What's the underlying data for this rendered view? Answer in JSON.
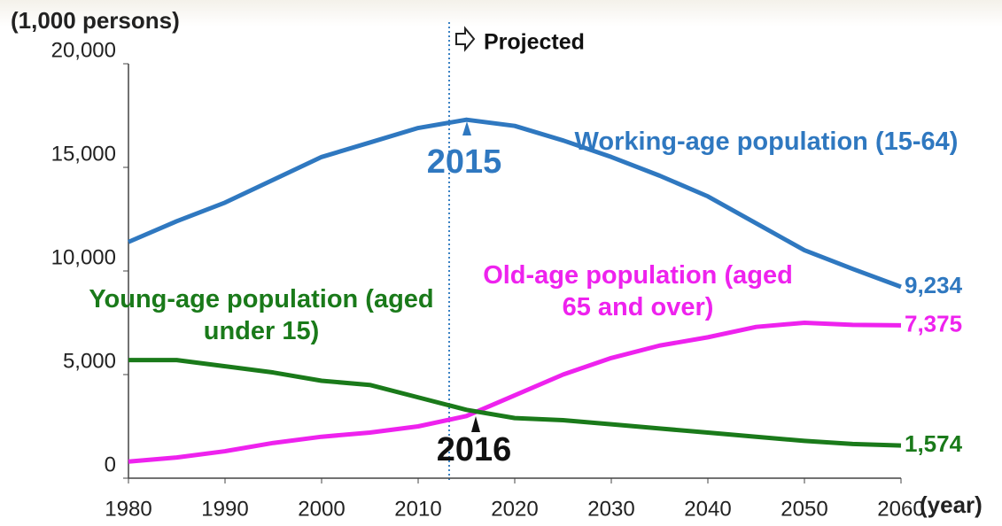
{
  "chart_data": {
    "type": "line",
    "y_label": "(1,000 persons)",
    "x_label": "(year)",
    "annotations": [
      "Projected",
      "2015",
      "2016"
    ],
    "x": [
      1980,
      1985,
      1990,
      1995,
      2000,
      2005,
      2010,
      2015,
      2020,
      2025,
      2030,
      2035,
      2040,
      2045,
      2050,
      2055,
      2060
    ],
    "series": [
      {
        "name": "Working-age population (15-64)",
        "color": "#2f78c0",
        "values": [
          11400,
          12400,
          13300,
          14400,
          15500,
          16200,
          16900,
          17300,
          17000,
          16300,
          15500,
          14600,
          13600,
          12300,
          11000,
          10100,
          9234
        ],
        "value_labels": [
          null,
          null,
          null,
          null,
          null,
          null,
          null,
          null,
          null,
          null,
          null,
          null,
          null,
          null,
          null,
          null,
          "9,234"
        ]
      },
      {
        "name": "Old-age population (aged 65 and over)",
        "color": "#ee22ee",
        "values": [
          800,
          1000,
          1300,
          1700,
          2000,
          2200,
          2500,
          3000,
          4000,
          5000,
          5800,
          6400,
          6800,
          7300,
          7500,
          7400,
          7375
        ],
        "value_labels": [
          null,
          null,
          null,
          null,
          null,
          null,
          null,
          null,
          null,
          null,
          null,
          null,
          null,
          null,
          null,
          null,
          "7,375"
        ]
      },
      {
        "name": "Young-age population (aged under 15)",
        "color": "#1a7a1a",
        "values": [
          5700,
          5700,
          5400,
          5100,
          4700,
          4500,
          3900,
          3300,
          2900,
          2800,
          2600,
          2400,
          2200,
          2000,
          1800,
          1650,
          1574
        ],
        "value_labels": [
          null,
          null,
          null,
          null,
          null,
          null,
          null,
          null,
          null,
          null,
          null,
          null,
          null,
          null,
          null,
          null,
          "1,574"
        ]
      }
    ],
    "xlim": [
      1980,
      2060
    ],
    "xticks": [
      1980,
      1990,
      2000,
      2010,
      2020,
      2030,
      2040,
      2050,
      2060
    ],
    "ylim": [
      0,
      20000
    ],
    "yticks": [
      0,
      {
        "value": 5000,
        "label": "5,000"
      },
      {
        "value": 10000,
        "label": "10,000"
      },
      {
        "value": 15000,
        "label": "15,000"
      },
      {
        "value": 20000,
        "label": "20,000"
      }
    ]
  }
}
